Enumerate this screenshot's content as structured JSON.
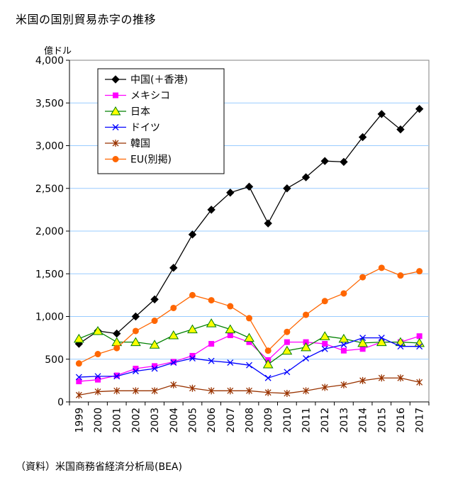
{
  "page": {
    "title": "米国の国別貿易赤字の推移",
    "source": "（資料）米国商務省経済分析局(BEA)"
  },
  "chart_data": {
    "type": "line",
    "title": "米国の国別貿易赤字の推移",
    "ylabel": "億ドル",
    "xlabel": "",
    "ylim": [
      0,
      4000
    ],
    "yticks": [
      0,
      500,
      1000,
      1500,
      2000,
      2500,
      3000,
      3500,
      4000
    ],
    "ytick_labels": [
      "0",
      "500",
      "1,000",
      "1,500",
      "2,000",
      "2,500",
      "3,000",
      "3,500",
      "4,000"
    ],
    "grid": true,
    "legend_position": "top-left",
    "x": [
      "1999",
      "2000",
      "2001",
      "2002",
      "2003",
      "2004",
      "2005",
      "2006",
      "2007",
      "2008",
      "2009",
      "2010",
      "2011",
      "2012",
      "2013",
      "2014",
      "2015",
      "2016",
      "2017"
    ],
    "series": [
      {
        "name": "中国(＋香港)",
        "color": "#000000",
        "marker": "diamond",
        "values": [
          680,
          830,
          800,
          1000,
          1200,
          1570,
          1960,
          2250,
          2450,
          2520,
          2090,
          2500,
          2630,
          2820,
          2810,
          3100,
          3370,
          3190,
          3430
        ]
      },
      {
        "name": "メキシコ",
        "color": "#ff00ff",
        "marker": "square",
        "values": [
          240,
          260,
          310,
          390,
          420,
          470,
          540,
          680,
          780,
          700,
          490,
          700,
          700,
          680,
          600,
          620,
          700,
          700,
          770
        ]
      },
      {
        "name": "日本",
        "color": "#008000",
        "fill": "#ffff00",
        "marker": "triangle",
        "values": [
          740,
          830,
          700,
          700,
          670,
          780,
          850,
          920,
          850,
          750,
          440,
          600,
          640,
          770,
          740,
          690,
          700,
          700,
          690
        ]
      },
      {
        "name": "ドイツ",
        "color": "#0000ff",
        "marker": "x",
        "values": [
          290,
          300,
          300,
          360,
          390,
          460,
          510,
          480,
          460,
          430,
          280,
          350,
          510,
          620,
          670,
          750,
          750,
          650,
          650
        ]
      },
      {
        "name": "韓国",
        "color": "#993300",
        "marker": "star",
        "values": [
          80,
          120,
          130,
          130,
          130,
          200,
          160,
          130,
          130,
          130,
          110,
          100,
          130,
          170,
          200,
          250,
          280,
          280,
          230
        ]
      },
      {
        "name": "EU(別掲)",
        "color": "#ff6600",
        "marker": "circle",
        "values": [
          450,
          560,
          630,
          830,
          950,
          1100,
          1250,
          1190,
          1120,
          980,
          600,
          820,
          1020,
          1180,
          1270,
          1460,
          1570,
          1480,
          1530
        ]
      }
    ]
  }
}
